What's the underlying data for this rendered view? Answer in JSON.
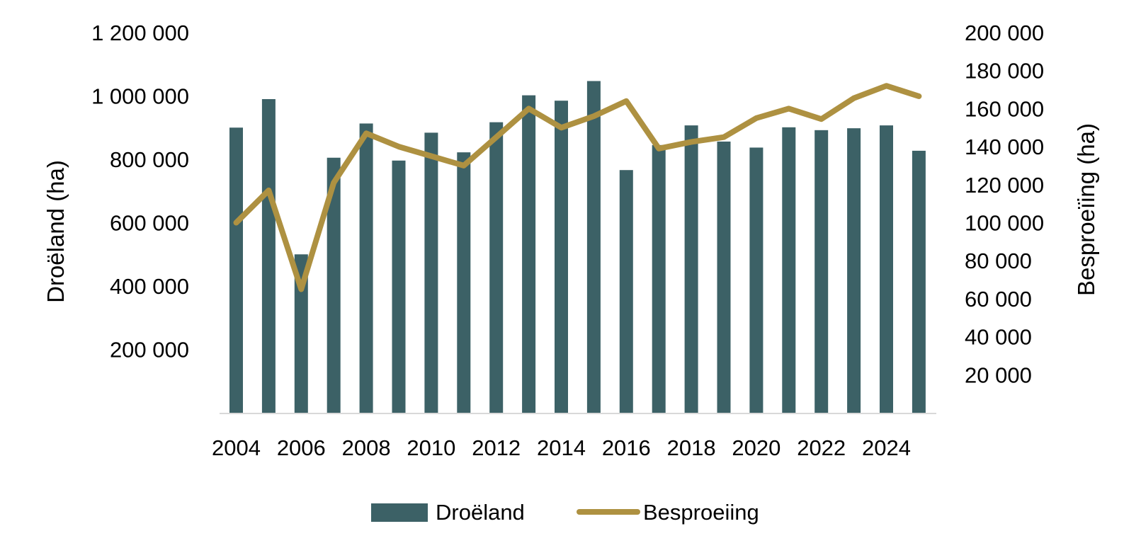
{
  "chart_data": {
    "type": "bar+line",
    "title": "",
    "categories": [
      "2004",
      "2005",
      "2006",
      "2007",
      "2008",
      "2009",
      "2010",
      "2011",
      "2012",
      "2013",
      "2014",
      "2015",
      "2016",
      "2017",
      "2018",
      "2019",
      "2020",
      "2021",
      "2022",
      "2023",
      "2024",
      "2025"
    ],
    "x_tick_labels": [
      "2004",
      "2006",
      "2008",
      "2010",
      "2012",
      "2014",
      "2016",
      "2018",
      "2020",
      "2022",
      "2024"
    ],
    "series": [
      {
        "name": "Droëland",
        "type": "bar",
        "axis": "left",
        "color": "#3c6166",
        "values": [
          900000,
          990000,
          500000,
          805000,
          913000,
          796000,
          884000,
          822000,
          917000,
          1002000,
          985000,
          1047000,
          766000,
          845000,
          907000,
          856000,
          837000,
          901000,
          892000,
          898000,
          907000,
          827000
        ]
      },
      {
        "name": "Besproeiing",
        "type": "line",
        "axis": "right",
        "color": "#ae9141",
        "values": [
          100000,
          117000,
          65000,
          121000,
          147000,
          140000,
          135000,
          130000,
          145000,
          160000,
          150000,
          156000,
          164000,
          139000,
          142500,
          145000,
          155000,
          160000,
          154500,
          165500,
          172000,
          166500
        ]
      }
    ],
    "y_left": {
      "label": "Droëland (ha)",
      "ylim": [
        0,
        1200000
      ],
      "tick_labels": [
        "200 000",
        "400 000",
        "600 000",
        "800 000",
        "1 000 000",
        "1 200 000"
      ],
      "tick_values": [
        200000,
        400000,
        600000,
        800000,
        1000000,
        1200000
      ]
    },
    "y_right": {
      "label": "Besproeïing (ha)",
      "ylim": [
        0,
        200000
      ],
      "tick_labels": [
        "20 000",
        "40 000",
        "60 000",
        "80 000",
        "100 000",
        "120 000",
        "140 000",
        "160 000",
        "180 000",
        "200 000"
      ],
      "tick_values": [
        20000,
        40000,
        60000,
        80000,
        100000,
        120000,
        140000,
        160000,
        180000,
        200000
      ]
    },
    "xlabel": "",
    "grid": false,
    "legend": {
      "position": "bottom",
      "entries": [
        "Droëland",
        "Besproeiing"
      ]
    },
    "axis_line_color": "#d9d9d9"
  }
}
